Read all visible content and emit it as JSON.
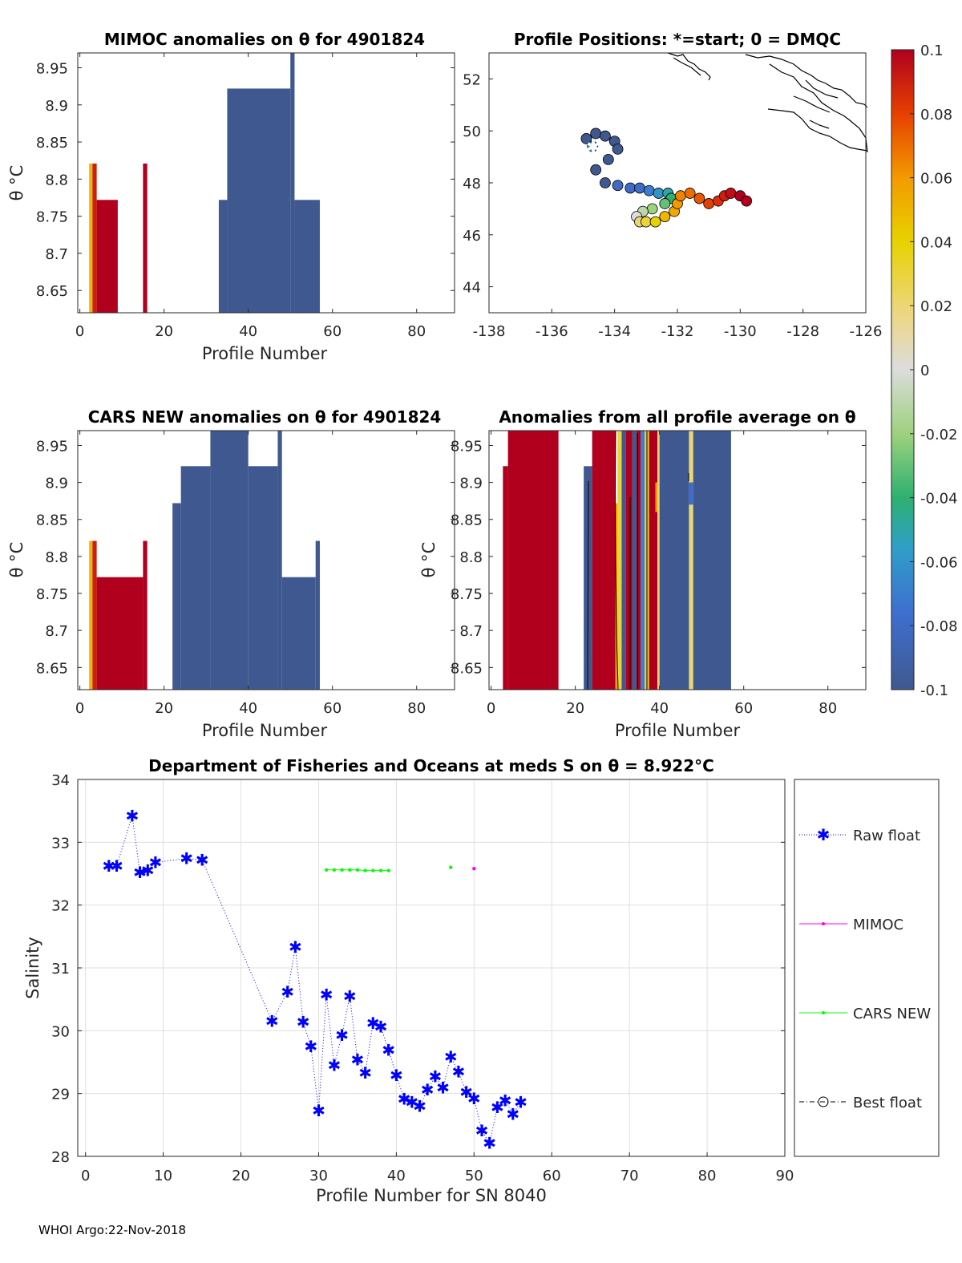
{
  "colors": {
    "neg": "#3f5990",
    "pos": "#b0001e",
    "raw": "#0000ff",
    "mimoc": "#ff00ff",
    "cars": "#00ff00",
    "best": "#000000"
  },
  "footer": "WHOI Argo:22-Nov-2018",
  "chart_data": [
    {
      "id": "mimoc",
      "type": "heatmap",
      "title": "MIMOC anomalies on θ  for 4901824",
      "xlabel": "Profile Number",
      "ylabel": "θ °C",
      "xlim": [
        -0.5,
        89
      ],
      "ylim": [
        8.62,
        8.97
      ],
      "xticks": [
        0,
        20,
        40,
        60,
        80
      ],
      "yticks": [
        8.65,
        8.7,
        8.75,
        8.8,
        8.85,
        8.9,
        8.95
      ],
      "ytick_labels": [
        "8.65",
        "8.7",
        "8.75",
        "8.8",
        "8.85",
        "8.9",
        "8.95"
      ],
      "cells": [
        {
          "x0": 2.2,
          "x1": 3.0,
          "top": 8.821,
          "v": 0.05
        },
        {
          "x0": 3.0,
          "x1": 4.0,
          "top": 8.821,
          "v": 0.09
        },
        {
          "x0": 4.0,
          "x1": 9.0,
          "top": 8.772,
          "v": 0.1
        },
        {
          "x0": 15.0,
          "x1": 16.0,
          "top": 8.821,
          "v": 0.1
        },
        {
          "x0": 33.0,
          "x1": 35.0,
          "top": 8.772,
          "v": -0.1
        },
        {
          "x0": 35.0,
          "x1": 50.0,
          "top": 8.922,
          "v": -0.1
        },
        {
          "x0": 50.0,
          "x1": 51.0,
          "top": 8.97,
          "v": -0.1
        },
        {
          "x0": 51.0,
          "x1": 57.0,
          "top": 8.772,
          "v": -0.1
        }
      ]
    },
    {
      "id": "positions",
      "type": "scatter",
      "title": "Profile Positions: *=start; 0 = DMQC",
      "xlim": [
        -138,
        -126
      ],
      "ylim": [
        43,
        53
      ],
      "xticks": [
        -138,
        -136,
        -134,
        -132,
        -130,
        -128,
        -126
      ],
      "yticks": [
        44,
        46,
        48,
        50,
        52
      ],
      "track": [
        [
          -134.7,
          49.4,
          -0.06
        ],
        [
          -134.9,
          49.7,
          -0.1
        ],
        [
          -134.6,
          49.9,
          -0.1
        ],
        [
          -134.3,
          49.8,
          -0.1
        ],
        [
          -134.0,
          49.6,
          -0.1
        ],
        [
          -133.9,
          49.3,
          -0.1
        ],
        [
          -134.2,
          48.9,
          -0.1
        ],
        [
          -134.6,
          48.5,
          -0.1
        ],
        [
          -134.3,
          48.0,
          -0.1
        ],
        [
          -133.9,
          47.9,
          -0.08
        ],
        [
          -133.5,
          47.8,
          -0.08
        ],
        [
          -133.2,
          47.8,
          -0.08
        ],
        [
          -132.9,
          47.7,
          -0.07
        ],
        [
          -132.6,
          47.6,
          -0.06
        ],
        [
          -132.3,
          47.6,
          -0.05
        ],
        [
          -132.2,
          47.4,
          -0.04
        ],
        [
          -132.4,
          47.2,
          -0.03
        ],
        [
          -132.8,
          47.0,
          -0.02
        ],
        [
          -133.1,
          46.9,
          -0.01
        ],
        [
          -133.3,
          46.7,
          0.0
        ],
        [
          -133.2,
          46.5,
          0.02
        ],
        [
          -133.0,
          46.5,
          0.03
        ],
        [
          -132.7,
          46.5,
          0.04
        ],
        [
          -132.4,
          46.7,
          0.05
        ],
        [
          -132.1,
          46.9,
          0.055
        ],
        [
          -132.0,
          47.2,
          0.06
        ],
        [
          -131.9,
          47.5,
          0.065
        ],
        [
          -131.6,
          47.6,
          0.07
        ],
        [
          -131.3,
          47.4,
          0.075
        ],
        [
          -131.0,
          47.2,
          0.08
        ],
        [
          -130.7,
          47.3,
          0.085
        ],
        [
          -130.5,
          47.5,
          0.09
        ],
        [
          -130.3,
          47.6,
          0.095
        ],
        [
          -130.0,
          47.5,
          0.1
        ],
        [
          -129.8,
          47.3,
          0.1
        ]
      ]
    },
    {
      "id": "cars",
      "type": "heatmap",
      "title": "CARS NEW anomalies on θ for 4901824",
      "xlabel": "Profile Number",
      "ylabel": "θ °C",
      "xlim": [
        -0.5,
        89
      ],
      "ylim": [
        8.62,
        8.97
      ],
      "xticks": [
        0,
        20,
        40,
        60,
        80
      ],
      "yticks": [
        8.65,
        8.7,
        8.75,
        8.8,
        8.85,
        8.9,
        8.95
      ],
      "ytick_labels": [
        "8.65",
        "8.7",
        "8.75",
        "8.8",
        "8.85",
        "8.9",
        "8.95"
      ],
      "cells": [
        {
          "x0": 2.2,
          "x1": 3.0,
          "top": 8.821,
          "v": 0.05
        },
        {
          "x0": 3.0,
          "x1": 4.0,
          "top": 8.821,
          "v": 0.09
        },
        {
          "x0": 4.0,
          "x1": 15.0,
          "top": 8.772,
          "v": 0.1
        },
        {
          "x0": 15.0,
          "x1": 16.0,
          "top": 8.821,
          "v": 0.1
        },
        {
          "x0": 22.0,
          "x1": 24.0,
          "top": 8.872,
          "v": -0.1
        },
        {
          "x0": 24.0,
          "x1": 31.0,
          "top": 8.922,
          "v": -0.1
        },
        {
          "x0": 31.0,
          "x1": 40.0,
          "top": 8.97,
          "v": -0.1
        },
        {
          "x0": 40.0,
          "x1": 47.0,
          "top": 8.922,
          "v": -0.1
        },
        {
          "x0": 47.0,
          "x1": 48.0,
          "top": 8.97,
          "v": -0.1
        },
        {
          "x0": 48.0,
          "x1": 56.0,
          "top": 8.772,
          "v": -0.1
        },
        {
          "x0": 56.0,
          "x1": 57.0,
          "top": 8.821,
          "v": -0.1
        }
      ]
    },
    {
      "id": "avg",
      "type": "heatmap",
      "title": "Anomalies from all profile average on θ",
      "xlabel": "Profile Number",
      "ylabel": "θ °C",
      "xlim": [
        -0.5,
        89
      ],
      "ylim": [
        8.62,
        8.97
      ],
      "xticks": [
        0,
        20,
        40,
        60,
        80
      ],
      "yticks": [
        8.65,
        8.7,
        8.75,
        8.8,
        8.85,
        8.9,
        8.95
      ],
      "ytick_labels": [
        "8.65",
        "8.7",
        "8.75",
        "8.8",
        "8.85",
        "8.9",
        "8.95"
      ],
      "cells": [
        {
          "x0": 2.8,
          "x1": 4.0,
          "top": 8.922,
          "v": 0.1
        },
        {
          "x0": 4.0,
          "x1": 16.0,
          "top": 8.97,
          "v": 0.1
        },
        {
          "x0": 22.0,
          "x1": 24.0,
          "top": 8.922,
          "v": -0.1
        },
        {
          "x0": 24.0,
          "x1": 29.5,
          "top": 8.97,
          "v": 0.1
        },
        {
          "x0": 29.5,
          "x1": 30.0,
          "top": 8.872,
          "v": 0.06
        },
        {
          "x0": 30.0,
          "x1": 31.0,
          "top": 8.97,
          "v": 0.03
        },
        {
          "x0": 31.0,
          "x1": 32.0,
          "top": 8.97,
          "v": -0.1
        },
        {
          "x0": 32.0,
          "x1": 33.5,
          "top": 8.97,
          "v": 0.1
        },
        {
          "x0": 33.5,
          "x1": 34.5,
          "top": 8.97,
          "v": -0.1
        },
        {
          "x0": 34.5,
          "x1": 35.5,
          "top": 8.97,
          "v": 0.1
        },
        {
          "x0": 35.5,
          "x1": 36.5,
          "top": 8.97,
          "v": -0.07
        },
        {
          "x0": 36.5,
          "x1": 37.5,
          "top": 8.97,
          "v": 0.03
        },
        {
          "x0": 37.5,
          "x1": 39.5,
          "top": 8.97,
          "v": 0.1
        },
        {
          "x0": 39.5,
          "x1": 40.0,
          "top": 8.97,
          "v": 0.02
        },
        {
          "x0": 40.0,
          "x1": 47.0,
          "top": 8.97,
          "v": -0.1
        },
        {
          "x0": 47.0,
          "x1": 48.0,
          "top": 8.97,
          "v": 0.02
        },
        {
          "x0": 48.0,
          "x1": 57.0,
          "top": 8.97,
          "v": -0.1
        }
      ],
      "overlays": [
        {
          "x0": 47.0,
          "x1": 48.0,
          "top": 8.9,
          "bottom": 8.87,
          "v": -0.08
        },
        {
          "x0": 39.0,
          "x1": 39.5,
          "top": 8.9,
          "bottom": 8.86,
          "v": 0.06
        }
      ]
    },
    {
      "id": "colorbar",
      "type": "colorbar",
      "range": [
        -0.1,
        0.1
      ],
      "ticks": [
        "0.1",
        "0.08",
        "0.06",
        "0.04",
        "0.02",
        "0",
        "-0.02",
        "-0.04",
        "-0.06",
        "-0.08",
        "-0.1"
      ]
    },
    {
      "id": "salinity",
      "type": "line",
      "title": "Department of Fisheries and Oceans at meds S on θ = 8.922°C",
      "xlabel": "Profile Number for SN 8040",
      "ylabel": "Salinity",
      "xlim": [
        -1,
        90
      ],
      "ylim": [
        28,
        34
      ],
      "xticks": [
        0,
        10,
        20,
        30,
        40,
        50,
        60,
        70,
        80,
        90
      ],
      "yticks": [
        28,
        29,
        30,
        31,
        32,
        33,
        34
      ],
      "series": [
        {
          "name": "Raw float",
          "style": "dotted-star",
          "x": [
            3,
            4,
            6,
            7,
            8,
            9,
            13,
            15,
            24,
            26,
            27,
            28,
            29,
            30,
            31,
            32,
            33,
            34,
            35,
            36,
            37,
            38,
            39,
            40,
            41,
            42,
            43,
            44,
            45,
            46,
            47,
            48,
            49,
            50,
            51,
            52,
            53,
            54,
            55,
            56
          ],
          "values": [
            32.62,
            32.62,
            33.42,
            32.52,
            32.55,
            32.68,
            32.74,
            32.72,
            30.15,
            30.62,
            31.33,
            30.14,
            29.75,
            28.73,
            30.57,
            29.45,
            29.93,
            30.55,
            29.54,
            29.33,
            30.12,
            30.06,
            29.69,
            29.29,
            28.91,
            28.86,
            28.8,
            29.06,
            29.27,
            29.09,
            29.58,
            29.35,
            29.02,
            28.92,
            28.41,
            28.21,
            28.78,
            28.89,
            28.67,
            28.86
          ]
        },
        {
          "name": "MIMOC",
          "style": "dot",
          "x": [
            50
          ],
          "values": [
            32.58
          ]
        },
        {
          "name": "CARS NEW",
          "style": "dot",
          "x": [
            31,
            32,
            33,
            34,
            35,
            36,
            37,
            38,
            39,
            47
          ],
          "values": [
            32.56,
            32.56,
            32.56,
            32.56,
            32.56,
            32.55,
            32.55,
            32.55,
            32.55,
            32.6
          ]
        },
        {
          "name": "Best float",
          "style": "dashdot-circle",
          "x": [],
          "values": []
        }
      ]
    }
  ]
}
